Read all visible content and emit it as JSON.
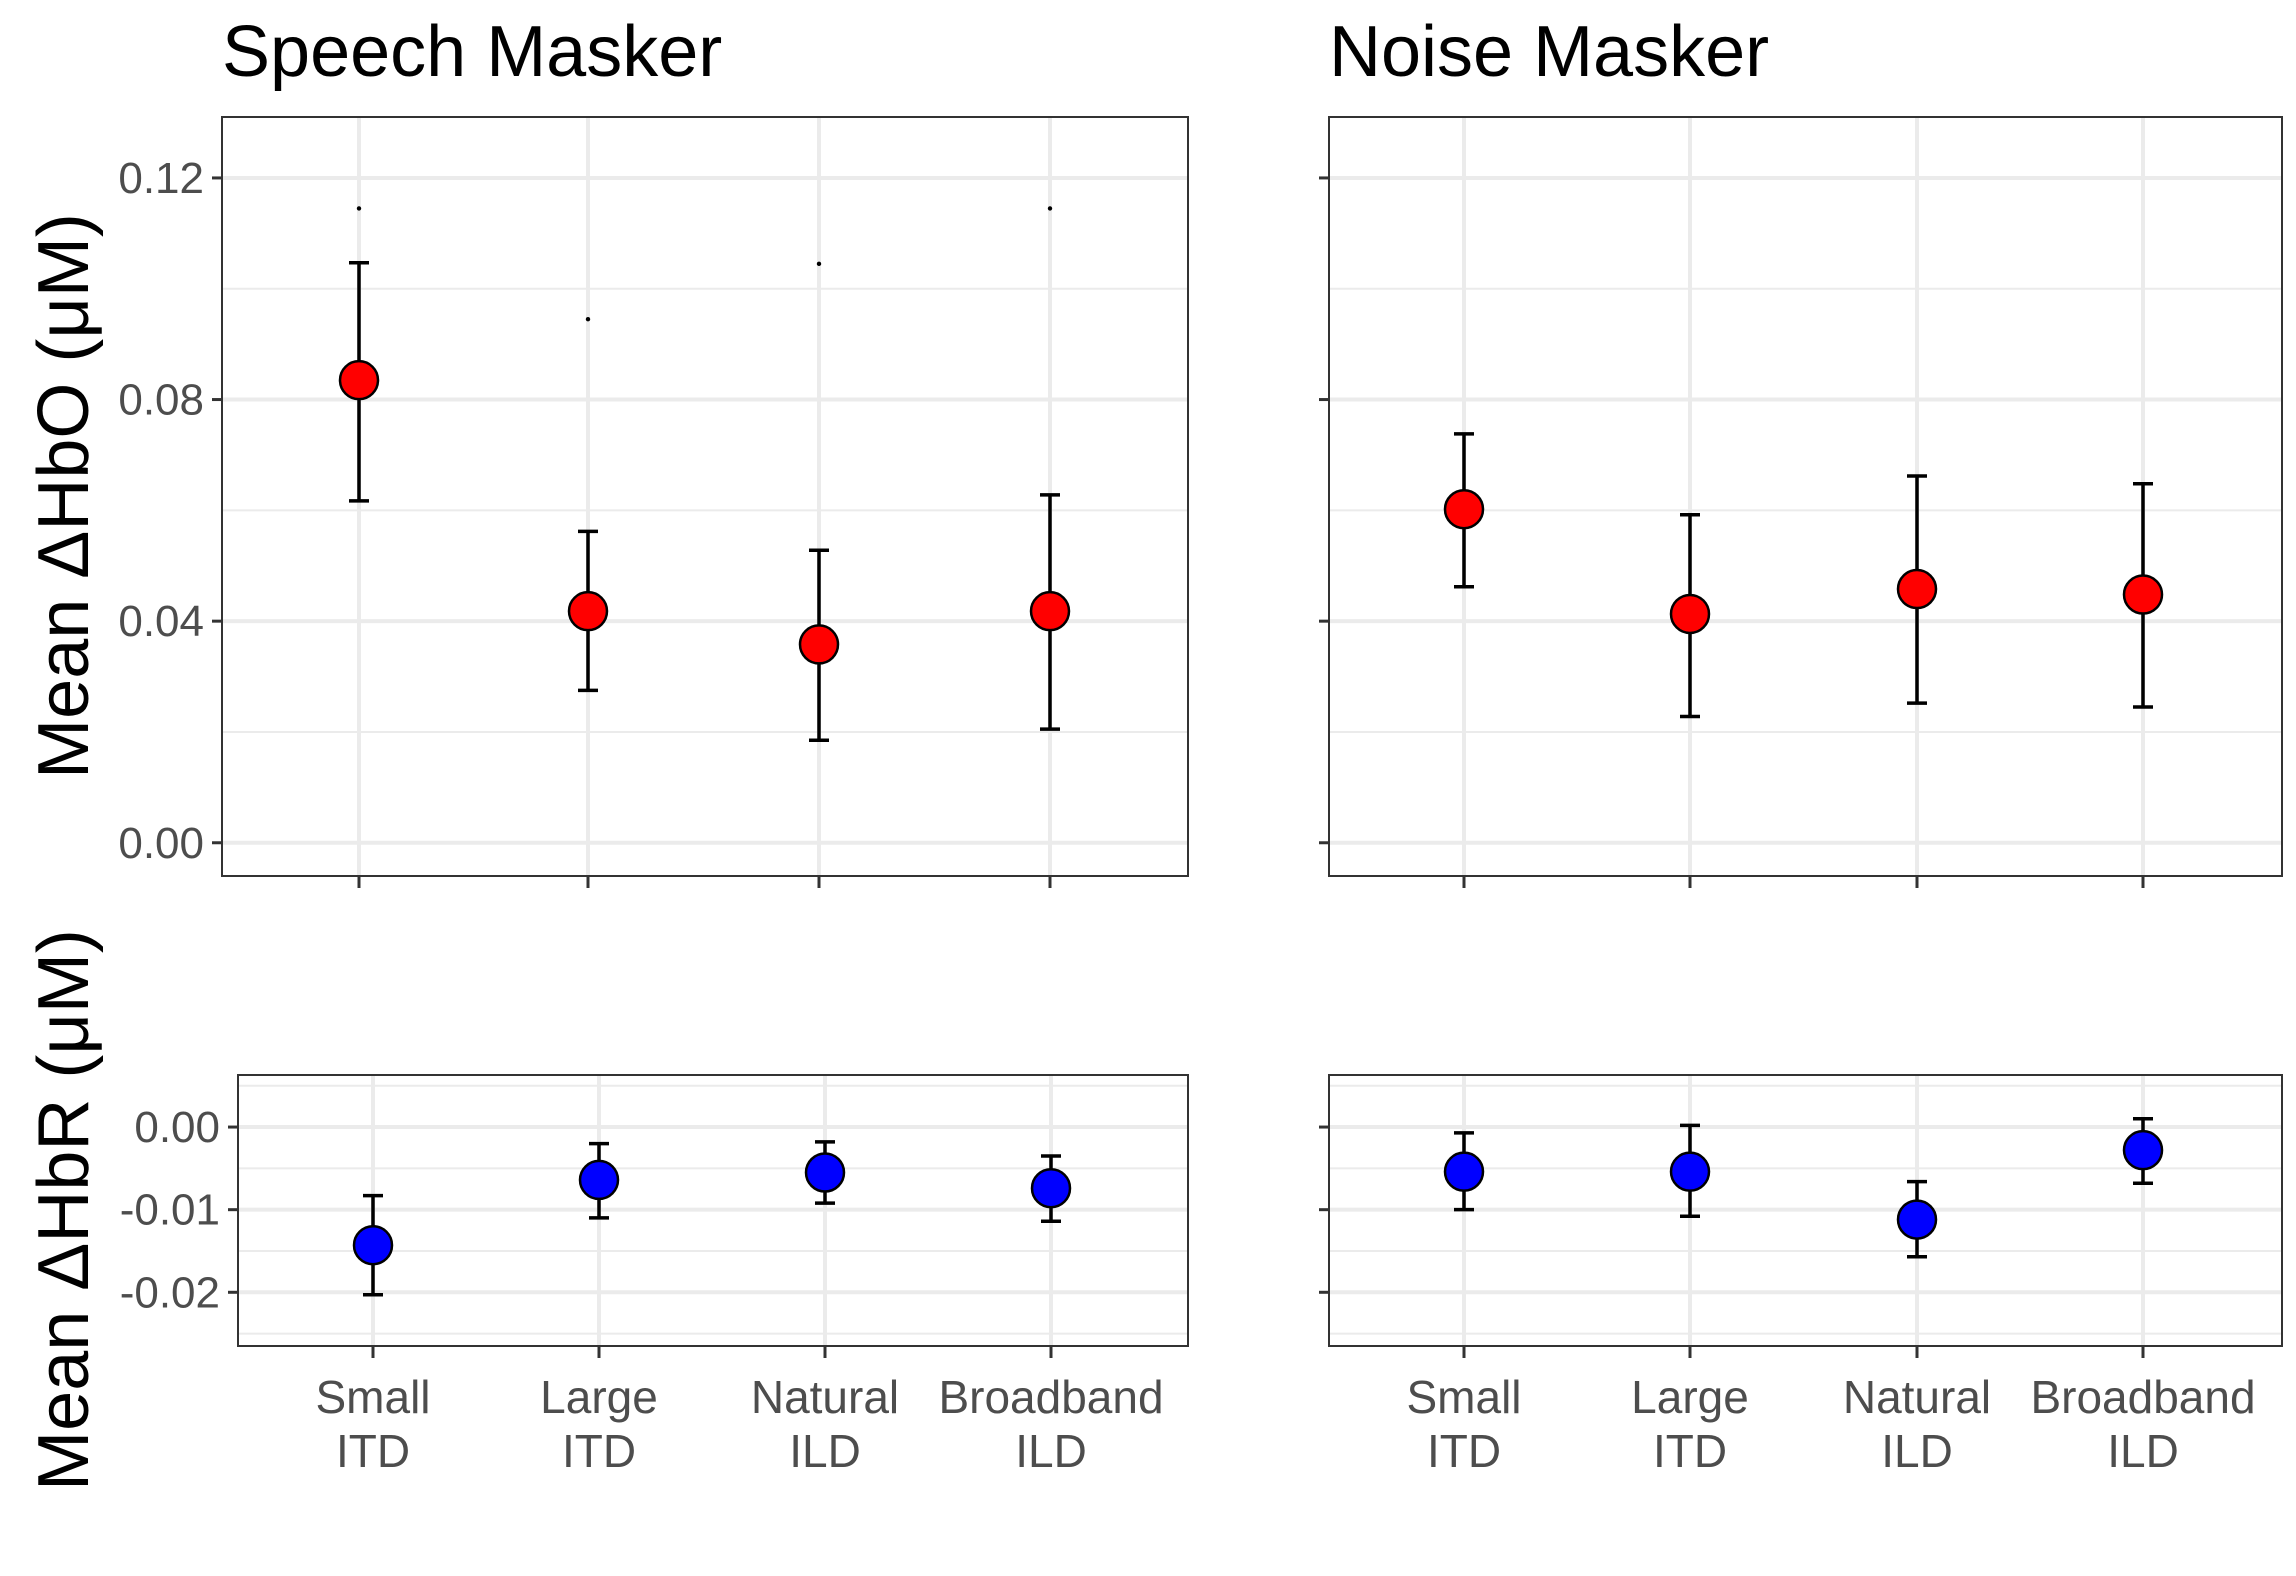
{
  "chart_data": [
    {
      "type": "scatter",
      "panel": "hbo-speech",
      "title": "Speech Masker",
      "ylabel": "Mean ΔHbO (μM)",
      "categories": [
        "Small\nITD",
        "Large\nITD",
        "Natural\nILD",
        "Broadband\nILD"
      ],
      "ylim": [
        -0.006,
        0.131
      ],
      "yticks": [
        "0.00",
        "0.04",
        "0.08",
        "0.12"
      ],
      "ytick_values": [
        0.0,
        0.04,
        0.08,
        0.12
      ],
      "series": [
        {
          "color": "#ff0000",
          "values": [
            0.0835,
            0.0418,
            0.0358,
            0.0418
          ],
          "lower": [
            0.0617,
            0.0275,
            0.0185,
            0.0205
          ],
          "upper": [
            0.1047,
            0.0562,
            0.0528,
            0.0628
          ],
          "dots": [
            0.1145,
            0.0945,
            0.1045,
            0.1145
          ]
        }
      ],
      "grid": true
    },
    {
      "type": "scatter",
      "panel": "hbo-noise",
      "title": "Noise Masker",
      "ylim": [
        -0.006,
        0.131
      ],
      "categories": [
        "Small\nITD",
        "Large\nITD",
        "Natural\nILD",
        "Broadband\nILD"
      ],
      "series": [
        {
          "color": "#ff0000",
          "values": [
            0.0602,
            0.0413,
            0.0458,
            0.0448
          ],
          "lower": [
            0.0462,
            0.0228,
            0.0252,
            0.0245
          ],
          "upper": [
            0.0738,
            0.0592,
            0.0662,
            0.0648
          ]
        }
      ],
      "grid": true
    },
    {
      "type": "scatter",
      "panel": "hbr-speech",
      "ylabel": "Mean ΔHbR (μM)",
      "categories": [
        "Small\nITD",
        "Large\nITD",
        "Natural\nILD",
        "Broadband\nILD"
      ],
      "ylim": [
        -0.0265,
        0.0063
      ],
      "yticks": [
        "0.00",
        "-0.01",
        "-0.02"
      ],
      "ytick_values": [
        0.0,
        -0.01,
        -0.02
      ],
      "series": [
        {
          "color": "#0000ff",
          "values": [
            -0.0143,
            -0.0064,
            -0.0055,
            -0.0074
          ],
          "lower": [
            -0.0203,
            -0.011,
            -0.0092,
            -0.0114
          ],
          "upper": [
            -0.0083,
            -0.002,
            -0.0018,
            -0.0035
          ]
        }
      ],
      "grid": true
    },
    {
      "type": "scatter",
      "panel": "hbr-noise",
      "ylim": [
        -0.0265,
        0.0063
      ],
      "categories": [
        "Small\nITD",
        "Large\nITD",
        "Natural\nILD",
        "Broadband\nILD"
      ],
      "series": [
        {
          "color": "#0000ff",
          "values": [
            -0.0054,
            -0.0054,
            -0.0112,
            -0.0028
          ],
          "lower": [
            -0.01,
            -0.0108,
            -0.0157,
            -0.0068
          ],
          "upper": [
            -0.0007,
            0.0002,
            -0.0066,
            0.001
          ]
        }
      ],
      "grid": true
    }
  ]
}
